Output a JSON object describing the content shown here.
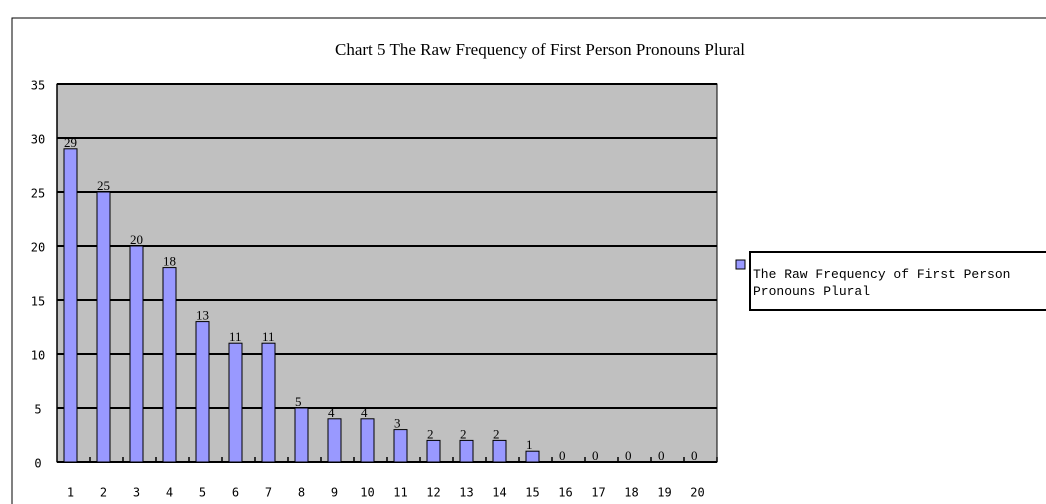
{
  "chart_data": {
    "type": "bar",
    "title": "Chart 5 The Raw Frequency of First Person Pronouns Plural",
    "categories": [
      "1",
      "2",
      "3",
      "4",
      "5",
      "6",
      "7",
      "8",
      "9",
      "10",
      "11",
      "12",
      "13",
      "14",
      "15",
      "16",
      "17",
      "18",
      "19",
      "20"
    ],
    "series": [
      {
        "name": "The Raw Frequency of First Person Pronouns Plural",
        "color": "#9999ff",
        "values": [
          29,
          25,
          20,
          18,
          13,
          11,
          11,
          5,
          4,
          4,
          3,
          2,
          2,
          2,
          1,
          0,
          0,
          0,
          0,
          0
        ]
      }
    ],
    "ylim": [
      0,
      35
    ],
    "yticks": [
      0,
      5,
      10,
      15,
      20,
      25,
      30,
      35
    ],
    "grid": true,
    "legend": "right",
    "plot_background": "#c0c0c0"
  }
}
